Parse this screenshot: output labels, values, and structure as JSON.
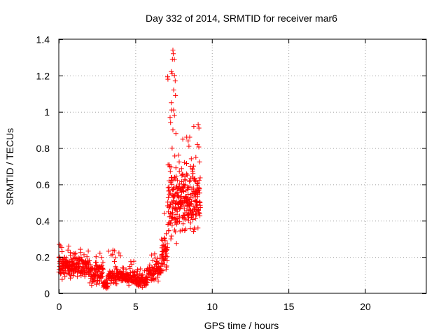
{
  "chart_data": {
    "type": "scatter",
    "title": "Day 332 of 2014, SRMTID for receiver mar6",
    "xlabel": "GPS time / hours",
    "ylabel": "SRMTID / TECUs",
    "xlim": [
      0,
      24
    ],
    "ylim": [
      0,
      1.4
    ],
    "grid": true,
    "marker": "+",
    "colors": {
      "points": "#ff0000",
      "grid": "#a0a0a0",
      "axes": "#000000"
    },
    "x_ticks": [
      0,
      5,
      10,
      15,
      20
    ],
    "x_tick_labels": [
      "0",
      "5",
      "10",
      "15",
      "20"
    ],
    "y_ticks": [
      0,
      0.2,
      0.4,
      0.6,
      0.8,
      1.0,
      1.2,
      1.4
    ],
    "y_tick_labels": [
      "0",
      "0.2",
      "0.4",
      "0.6",
      "0.8",
      "1",
      "1.2",
      "1.4"
    ],
    "segments": [
      {
        "x0": 0.0,
        "x1": 1.0,
        "count": 110,
        "base": 0.15,
        "spread": 0.06,
        "maxv": 0.27
      },
      {
        "x0": 1.0,
        "x1": 2.0,
        "count": 95,
        "base": 0.15,
        "spread": 0.06,
        "maxv": 0.28
      },
      {
        "x0": 2.0,
        "x1": 2.9,
        "count": 85,
        "base": 0.11,
        "spread": 0.05,
        "maxv": 0.24
      },
      {
        "x0": 2.9,
        "x1": 3.2,
        "count": 35,
        "base": 0.05,
        "spread": 0.02,
        "maxv": 0.09
      },
      {
        "x0": 3.2,
        "x1": 4.2,
        "count": 90,
        "base": 0.1,
        "spread": 0.04,
        "maxv": 0.24
      },
      {
        "x0": 4.2,
        "x1": 5.0,
        "count": 70,
        "base": 0.09,
        "spread": 0.035,
        "maxv": 0.19
      },
      {
        "x0": 5.0,
        "x1": 5.8,
        "count": 75,
        "base": 0.07,
        "spread": 0.03,
        "maxv": 0.16
      },
      {
        "x0": 5.8,
        "x1": 6.7,
        "count": 75,
        "base": 0.12,
        "spread": 0.04,
        "maxv": 0.22
      },
      {
        "x0": 6.7,
        "x1": 7.1,
        "count": 50,
        "base": 0.22,
        "spread": 0.09,
        "maxv": 0.45
      },
      {
        "x0": 7.1,
        "x1": 7.7,
        "count": 90,
        "base": 0.5,
        "spread": 0.2,
        "maxv": 1.34
      },
      {
        "x0": 7.7,
        "x1": 8.4,
        "count": 100,
        "base": 0.5,
        "spread": 0.14,
        "maxv": 0.85
      },
      {
        "x0": 8.4,
        "x1": 9.25,
        "count": 120,
        "base": 0.52,
        "spread": 0.15,
        "maxv": 0.93
      }
    ],
    "peaks": [
      {
        "x": 7.45,
        "y": 1.34
      },
      {
        "x": 7.48,
        "y": 1.32
      },
      {
        "x": 7.42,
        "y": 1.29
      },
      {
        "x": 7.4,
        "y": 1.21
      },
      {
        "x": 7.55,
        "y": 1.2
      },
      {
        "x": 7.6,
        "y": 1.17
      },
      {
        "x": 7.5,
        "y": 1.12
      },
      {
        "x": 7.62,
        "y": 1.09
      },
      {
        "x": 7.35,
        "y": 1.05
      },
      {
        "x": 7.38,
        "y": 1.01
      },
      {
        "x": 7.55,
        "y": 0.98
      },
      {
        "x": 7.3,
        "y": 0.94
      },
      {
        "x": 7.45,
        "y": 0.9
      },
      {
        "x": 7.65,
        "y": 0.88
      },
      {
        "x": 7.4,
        "y": 0.8
      },
      {
        "x": 8.35,
        "y": 0.86
      },
      {
        "x": 8.45,
        "y": 0.84
      },
      {
        "x": 8.5,
        "y": 0.81
      },
      {
        "x": 9.1,
        "y": 0.93
      },
      {
        "x": 9.15,
        "y": 0.91
      },
      {
        "x": 9.05,
        "y": 0.82
      },
      {
        "x": 8.95,
        "y": 0.75
      },
      {
        "x": 8.6,
        "y": 0.7
      },
      {
        "x": 8.2,
        "y": 0.72
      }
    ]
  }
}
